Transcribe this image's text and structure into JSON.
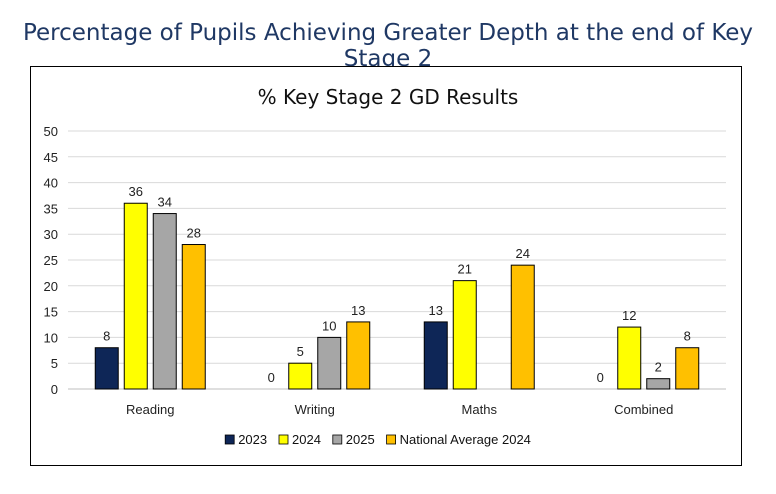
{
  "page": {
    "heading": "Percentage of Pupils Achieving Greater Depth at the end of Key Stage 2"
  },
  "chart_data": {
    "type": "bar",
    "title": "% Key Stage 2 GD Results",
    "categories": [
      "Reading",
      "Writing",
      "Maths",
      "Combined"
    ],
    "series": [
      {
        "name": "2023",
        "color": "#0e2657",
        "values": [
          8,
          0,
          13,
          0
        ]
      },
      {
        "name": "2024",
        "color": "#ffff00",
        "values": [
          36,
          5,
          21,
          12
        ]
      },
      {
        "name": "2025",
        "color": "#a6a6a6",
        "values": [
          34,
          10,
          null,
          2
        ]
      },
      {
        "name": "National Average 2024",
        "color": "#ffc000",
        "values": [
          28,
          13,
          24,
          8
        ]
      }
    ],
    "ylim": [
      0,
      50
    ],
    "yticks": [
      0,
      5,
      10,
      15,
      20,
      25,
      30,
      35,
      40,
      45,
      50
    ],
    "grid": true,
    "legend_position": "bottom"
  }
}
